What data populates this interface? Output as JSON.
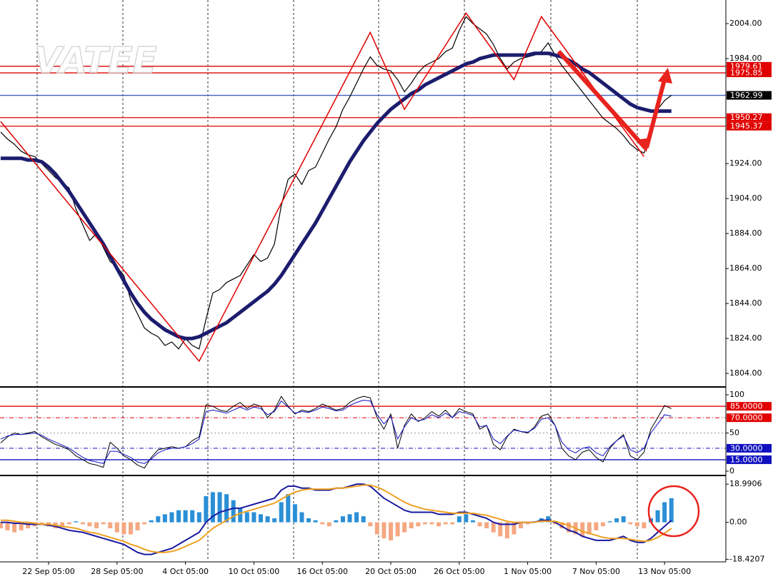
{
  "watermark": "VATEE",
  "chart_data": [
    {
      "type": "line",
      "ylim": [
        1797.1,
        2017.5
      ],
      "yticks": [
        {
          "value": 1804,
          "label": "1804.00"
        },
        {
          "value": 1824,
          "label": "1824.00"
        },
        {
          "value": 1844,
          "label": "1844.00"
        },
        {
          "value": 1864,
          "label": "1864.00"
        },
        {
          "value": 1884,
          "label": "1884.00"
        },
        {
          "value": 1904,
          "label": "1904.00"
        },
        {
          "value": 1924,
          "label": "1924.00"
        },
        {
          "value": 1984,
          "label": "1984.00"
        },
        {
          "value": 2004,
          "label": "2004.00"
        }
      ],
      "series": [
        {
          "name": "Price",
          "color": "#000000",
          "width": 1.2,
          "kind": "line",
          "values": [
            1942,
            1938,
            1935,
            1931,
            1929,
            1928,
            1924,
            1920,
            1916,
            1913,
            1910,
            1898,
            1889,
            1880,
            1884,
            1876,
            1868,
            1865,
            1860,
            1846,
            1838,
            1830,
            1827,
            1825,
            1820,
            1822,
            1818,
            1824,
            1820,
            1818,
            1835,
            1850,
            1852,
            1856,
            1858,
            1860,
            1866,
            1872,
            1868,
            1870,
            1878,
            1900,
            1915,
            1918,
            1912,
            1920,
            1922,
            1930,
            1938,
            1945,
            1955,
            1962,
            1970,
            1978,
            1985,
            1980,
            1978,
            1977,
            1972,
            1965,
            1970,
            1976,
            1980,
            1982,
            1984,
            1988,
            1990,
            2000,
            2008,
            2004,
            2001,
            1998,
            1992,
            1984,
            1978,
            1982,
            1984,
            1985,
            1986,
            1988,
            1993,
            1986,
            1980,
            1975,
            1970,
            1965,
            1960,
            1955,
            1950,
            1947,
            1944,
            1940,
            1935,
            1932,
            1930,
            1942,
            1955,
            1960,
            1963
          ]
        },
        {
          "name": "MA",
          "color": "#1c1c6e",
          "width": 5,
          "kind": "line",
          "values": [
            1927,
            1927,
            1927,
            1927,
            1926,
            1926,
            1925,
            1922,
            1918,
            1913,
            1908,
            1902,
            1896,
            1890,
            1884,
            1878,
            1871,
            1864,
            1857,
            1850,
            1844,
            1839,
            1835,
            1832,
            1829,
            1827,
            1825,
            1824,
            1824,
            1825,
            1827,
            1829,
            1831,
            1833,
            1836,
            1839,
            1842,
            1845,
            1848,
            1851,
            1855,
            1860,
            1866,
            1872,
            1878,
            1884,
            1890,
            1897,
            1904,
            1911,
            1918,
            1925,
            1931,
            1937,
            1942,
            1947,
            1951,
            1955,
            1958,
            1961,
            1964,
            1966,
            1969,
            1971,
            1973,
            1975,
            1977,
            1979,
            1981,
            1982,
            1984,
            1985,
            1986,
            1986,
            1986,
            1986,
            1986,
            1986,
            1987,
            1987,
            1987,
            1986,
            1985,
            1983,
            1981,
            1978,
            1976,
            1973,
            1970,
            1967,
            1964,
            1961,
            1958,
            1956,
            1955,
            1954,
            1954,
            1954,
            1954
          ]
        }
      ],
      "zigzag": {
        "color": "#e00000",
        "x": [
          0,
          29,
          54,
          59,
          68,
          75,
          79,
          94
        ],
        "values": [
          1948,
          1811,
          1999,
          1955,
          2010,
          1972,
          2008,
          1928
        ]
      },
      "levels": [
        {
          "value": 1979.61,
          "color": "#e00000",
          "box": "#e00000",
          "dash": "solid"
        },
        {
          "value": 1975.85,
          "color": "#e00000",
          "box": "#e00000",
          "dash": "solid"
        },
        {
          "value": 1962.99,
          "color": "#4060c0",
          "box": "#000000",
          "dash": "solid"
        },
        {
          "value": 1950.27,
          "color": "#e00000",
          "box": "#e00000",
          "dash": "solid"
        },
        {
          "value": 1945.37,
          "color": "#e00000",
          "box": "#e00000",
          "dash": "solid"
        }
      ]
    },
    {
      "type": "line",
      "ylim": [
        -4.7,
        107.5
      ],
      "yticks": [
        0,
        50,
        100
      ],
      "series": [
        {
          "name": "Fast",
          "color": "#000000",
          "width": 1,
          "kind": "line",
          "values": [
            37,
            45,
            50,
            48,
            50,
            52,
            45,
            40,
            35,
            32,
            28,
            20,
            15,
            10,
            8,
            5,
            38,
            30,
            20,
            15,
            8,
            4,
            18,
            28,
            30,
            32,
            30,
            32,
            40,
            45,
            87,
            85,
            80,
            78,
            85,
            90,
            82,
            88,
            85,
            70,
            80,
            98,
            85,
            75,
            80,
            78,
            82,
            88,
            84,
            80,
            82,
            90,
            95,
            98,
            96,
            70,
            55,
            75,
            30,
            60,
            75,
            65,
            70,
            78,
            72,
            80,
            70,
            82,
            78,
            75,
            55,
            60,
            35,
            28,
            45,
            55,
            52,
            50,
            58,
            72,
            75,
            60,
            30,
            20,
            15,
            25,
            28,
            18,
            12,
            30,
            40,
            48,
            20,
            15,
            25,
            55,
            70,
            86,
            82
          ]
        },
        {
          "name": "Slow",
          "color": "#1010c0",
          "width": 1,
          "kind": "line",
          "values": [
            42,
            46,
            48,
            48,
            49,
            50,
            47,
            42,
            38,
            34,
            30,
            24,
            18,
            14,
            12,
            10,
            26,
            26,
            22,
            18,
            12,
            10,
            16,
            24,
            28,
            30,
            30,
            32,
            36,
            42,
            78,
            80,
            78,
            76,
            80,
            84,
            80,
            84,
            82,
            74,
            78,
            92,
            84,
            76,
            78,
            77,
            80,
            84,
            82,
            79,
            80,
            86,
            90,
            93,
            92,
            74,
            62,
            72,
            42,
            58,
            70,
            66,
            68,
            74,
            70,
            76,
            70,
            78,
            76,
            73,
            58,
            60,
            42,
            36,
            46,
            54,
            52,
            51,
            56,
            68,
            70,
            60,
            38,
            28,
            24,
            30,
            32,
            24,
            20,
            32,
            40,
            46,
            28,
            24,
            30,
            50,
            62,
            74,
            72
          ]
        }
      ],
      "levels": [
        {
          "value": 85,
          "label": "85.0000",
          "color": "#e00000",
          "box": "#e00000",
          "dash": "solid"
        },
        {
          "value": 70,
          "label": "70.0000",
          "color": "#e00000",
          "box": "#e00000",
          "dash": "dashdot"
        },
        {
          "value": 50,
          "color": "#999999",
          "dash": "dot"
        },
        {
          "value": 30,
          "label": "30.0000",
          "color": "#1010c0",
          "box": "#1010c0",
          "dash": "dashdot"
        },
        {
          "value": 15,
          "label": "15.0000",
          "color": "#1010c0",
          "box": "#1010c0",
          "dash": "solid"
        }
      ]
    },
    {
      "type": "line",
      "ylim": [
        -19.35,
        22.6
      ],
      "yticks": [
        18.9906,
        {
          "value": 0,
          "label": "0.00"
        },
        -18.4207
      ],
      "categories": [
        null,
        null,
        null,
        null,
        null,
        null,
        null,
        "22 Sep 05:00",
        null,
        null,
        null,
        null,
        null,
        null,
        null,
        null,
        null,
        "28 Sep 05:00",
        null,
        null,
        null,
        null,
        null,
        null,
        null,
        null,
        null,
        "4 Oct 05:00",
        null,
        null,
        null,
        null,
        null,
        null,
        null,
        null,
        null,
        "10 Oct 05:00",
        null,
        null,
        null,
        null,
        null,
        null,
        null,
        null,
        null,
        "16 Oct 05:00",
        null,
        null,
        null,
        null,
        null,
        null,
        null,
        null,
        null,
        "20 Oct 05:00",
        null,
        null,
        null,
        null,
        null,
        null,
        null,
        null,
        null,
        "26 Oct 05:00",
        null,
        null,
        null,
        null,
        null,
        null,
        null,
        null,
        null,
        "1 Nov 05:00",
        null,
        null,
        null,
        null,
        null,
        null,
        null,
        null,
        null,
        "7 Nov 05:00",
        null,
        null,
        null,
        null,
        null,
        null,
        null,
        null,
        null,
        "13 Nov 05:00",
        null
      ],
      "series": [
        {
          "name": "Histogram",
          "kind": "bar",
          "color": "#2b8fd6",
          "neg_color": "#f4a882",
          "values": [
            -3,
            -4,
            -5,
            -4,
            -3,
            -2,
            -1,
            -2,
            -3,
            -2,
            -1,
            0.5,
            -1,
            -2,
            -3,
            -1,
            -3,
            -5,
            -6,
            -6,
            -4,
            -1,
            1,
            3,
            4,
            5,
            6,
            6,
            6,
            5,
            13,
            15,
            15,
            14,
            11,
            7,
            5,
            5,
            4,
            3,
            2,
            10,
            14,
            9,
            5,
            2,
            1,
            -1,
            -2,
            1,
            3,
            4,
            5,
            3,
            -2,
            -6,
            -8,
            -9,
            -7,
            -5,
            -3,
            -2,
            -1,
            -1,
            -2,
            -1,
            -1,
            3,
            4,
            1,
            -2,
            -3,
            -5,
            -7,
            -8,
            -6,
            -3,
            -1,
            0.5,
            2,
            3,
            -1,
            -3,
            -5,
            -6,
            -7,
            -6,
            -4,
            -2,
            0.5,
            2,
            3,
            -1,
            -2,
            -3,
            2,
            6,
            10,
            12
          ]
        },
        {
          "name": "MACD",
          "kind": "line",
          "color": "#1a1aa0",
          "width": 2,
          "values": [
            0,
            0,
            -0.5,
            -0.5,
            -1,
            -1,
            -1,
            -1.5,
            -2,
            -3,
            -4,
            -4.5,
            -5,
            -6,
            -7,
            -8,
            -9,
            -10,
            -11,
            -13,
            -15,
            -16,
            -16,
            -15,
            -14,
            -13,
            -11,
            -9,
            -7,
            -5,
            0,
            3,
            5,
            6,
            7,
            7,
            8,
            9,
            10,
            11,
            12,
            16,
            18,
            18,
            17,
            17,
            16,
            16,
            16,
            17,
            17,
            18,
            19,
            19,
            18,
            15,
            12,
            10,
            8,
            6,
            5,
            5,
            5,
            5,
            4,
            4,
            4,
            5,
            5,
            4,
            3,
            2,
            0,
            -1,
            -1,
            -1,
            0,
            0,
            0,
            1,
            1,
            0,
            -2,
            -4,
            -5,
            -7,
            -8,
            -9,
            -9,
            -9,
            -8,
            -7,
            -9,
            -10,
            -10,
            -8,
            -5,
            -2,
            1
          ]
        },
        {
          "name": "Signal",
          "kind": "line",
          "color": "#f0a020",
          "width": 2,
          "values": [
            1,
            1,
            0.5,
            0,
            0,
            -0.5,
            -1,
            -1,
            -1.5,
            -2,
            -2.5,
            -3,
            -4,
            -5,
            -5.5,
            -6.5,
            -7.5,
            -8.5,
            -9.5,
            -11,
            -12,
            -13.5,
            -14.5,
            -15,
            -15,
            -14.5,
            -13.5,
            -12,
            -10.5,
            -9,
            -6,
            -3,
            -1,
            1,
            3,
            4.5,
            5.5,
            6.5,
            7.5,
            8.5,
            9.5,
            11.5,
            13.5,
            15,
            16,
            16.5,
            16.5,
            16.5,
            16.5,
            17,
            17,
            17.5,
            18,
            18.5,
            18.5,
            17.5,
            16,
            14,
            12,
            10,
            8.5,
            7.5,
            6.5,
            6,
            5.5,
            5,
            4.5,
            4.5,
            4.5,
            4.5,
            4,
            3.5,
            2.5,
            1.5,
            0.5,
            0,
            0,
            0,
            0,
            0.5,
            0.5,
            0.5,
            -0.5,
            -1.5,
            -3,
            -4.5,
            -5.5,
            -6.5,
            -7.5,
            -8,
            -8,
            -8,
            -8.5,
            -9,
            -9.5,
            -9,
            -7.5,
            -5.5,
            -3
          ]
        }
      ]
    }
  ]
}
